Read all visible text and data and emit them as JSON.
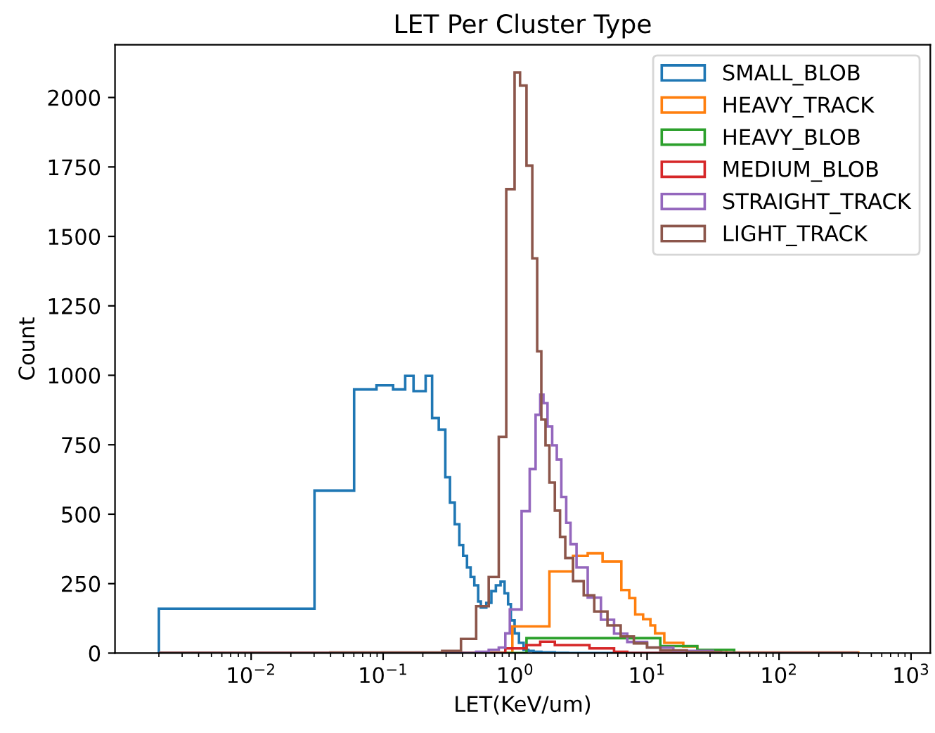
{
  "chart_data": {
    "type": "histogram",
    "title": "LET Per Cluster Type",
    "xlabel": "LET(KeV/um)",
    "ylabel": "Count",
    "log": "x",
    "xlim": [
      0.00093,
      1400
    ],
    "xticks": [
      {
        "value": 0.01,
        "label": "10$^{−2}$"
      },
      {
        "value": 0.1,
        "label": "10$^{−1}$"
      },
      {
        "value": 1,
        "label": "10$^{0}$"
      },
      {
        "value": 10,
        "label": "10$^{1}$"
      },
      {
        "value": 100,
        "label": "10$^{2}$"
      },
      {
        "value": 1000,
        "label": "10$^{3}$"
      }
    ],
    "ylim": [
      0,
      2190
    ],
    "yticks": [
      0,
      250,
      500,
      750,
      1000,
      1250,
      1500,
      1750,
      2000
    ],
    "grid": false,
    "legend": "top right",
    "bins": [
      0.002,
      0.0302,
      0.0398,
      0.0603,
      0.0891,
      0.119,
      0.147,
      0.17,
      0.21,
      0.235,
      0.264,
      0.28,
      0.296,
      0.321,
      0.349,
      0.378,
      0.389,
      0.404,
      0.432,
      0.46,
      0.491,
      0.507,
      0.525,
      0.55,
      0.605,
      0.631,
      0.661,
      0.715,
      0.752,
      0.776,
      0.832,
      0.843,
      0.857,
      0.885,
      0.912,
      0.929,
      0.953,
      0.991,
      1.07,
      1.09,
      1.12,
      1.16,
      1.22,
      1.26,
      1.29,
      1.35,
      1.38,
      1.43,
      1.47,
      1.55,
      1.58,
      1.64,
      1.7,
      1.76,
      1.82,
      1.91,
      2.0,
      2.07,
      2.19,
      2.24,
      2.4,
      2.44,
      2.51,
      2.63,
      2.75,
      2.92,
      3.31,
      3.55,
      3.66,
      3.98,
      4.47,
      4.6,
      5.01,
      5.62,
      6.31,
      6.38,
      7.08,
      7.33,
      7.94,
      8.13,
      9.33,
      10,
      10.6,
      11.5,
      12.6,
      13.5,
      15.8,
      18.8,
      20,
      24.0,
      31.6,
      36.3,
      39.8,
      45.7,
      398
    ],
    "series": [
      {
        "name": "SMALL_BLOB",
        "color": "#1f77b4",
        "values": [
          160,
          585,
          585,
          949,
          964,
          949,
          998,
          943,
          998,
          846,
          804,
          804,
          633,
          542,
          464,
          389,
          389,
          350,
          308,
          274,
          244,
          244,
          186,
          164,
          181,
          181,
          223,
          244,
          244,
          257,
          215,
          215,
          215,
          176,
          176,
          118,
          118,
          71,
          37,
          37,
          37,
          12,
          12,
          8,
          8,
          8,
          5,
          5,
          5,
          5,
          3,
          3,
          3,
          3,
          3,
          3,
          1,
          1,
          1,
          1,
          1,
          1,
          0,
          0,
          0,
          0,
          0,
          0,
          0,
          0,
          0,
          0,
          0,
          0,
          0,
          0,
          0,
          0,
          0,
          0,
          0,
          0,
          0,
          0,
          0,
          0,
          0,
          0,
          0,
          0,
          0,
          0,
          0,
          0
        ]
      },
      {
        "name": "HEAVY_TRACK",
        "color": "#ff7f0e",
        "values": [
          0,
          0,
          0,
          0,
          0,
          0,
          0,
          0,
          0,
          0,
          0,
          0,
          0,
          0,
          0,
          0,
          0,
          0,
          0,
          0,
          0,
          0,
          0,
          0,
          0,
          0,
          0,
          0,
          0,
          0,
          0,
          0,
          0,
          0,
          0,
          0,
          96,
          96,
          96,
          96,
          96,
          96,
          96,
          96,
          96,
          96,
          96,
          96,
          96,
          96,
          96,
          96,
          96,
          96,
          294,
          294,
          294,
          294,
          294,
          294,
          294,
          294,
          294,
          294,
          350,
          350,
          350,
          359,
          359,
          359,
          359,
          330,
          330,
          330,
          330,
          227,
          227,
          198,
          198,
          139,
          122,
          122,
          100,
          71,
          71,
          37,
          37,
          24,
          24,
          12,
          12,
          12,
          2,
          2
        ]
      },
      {
        "name": "HEAVY_BLOB",
        "color": "#2ca02c",
        "values": [
          0,
          0,
          0,
          0,
          0,
          0,
          0,
          0,
          0,
          0,
          0,
          0,
          0,
          0,
          0,
          0,
          0,
          0,
          0,
          0,
          0,
          0,
          0,
          0,
          0,
          0,
          0,
          0,
          0,
          0,
          0,
          0,
          0,
          0,
          0,
          0,
          0,
          0,
          0,
          0,
          0,
          0,
          54,
          54,
          54,
          54,
          54,
          54,
          54,
          54,
          54,
          54,
          54,
          54,
          54,
          54,
          54,
          54,
          54,
          54,
          54,
          54,
          54,
          54,
          54,
          54,
          54,
          54,
          54,
          54,
          54,
          54,
          54,
          54,
          54,
          54,
          54,
          54,
          54,
          54,
          54,
          54,
          54,
          54,
          25,
          25,
          25,
          25,
          25,
          12,
          12,
          12,
          12,
          0
        ]
      },
      {
        "name": "MEDIUM_BLOB",
        "color": "#d62728",
        "values": [
          0,
          0,
          0,
          0,
          0,
          0,
          0,
          0,
          0,
          0,
          0,
          0,
          0,
          0,
          0,
          0,
          0,
          0,
          0,
          0,
          0,
          0,
          0,
          0,
          0,
          0,
          0,
          0,
          0,
          0,
          0,
          17,
          17,
          17,
          17,
          17,
          17,
          17,
          17,
          17,
          17,
          17,
          29,
          29,
          29,
          29,
          29,
          29,
          29,
          41,
          41,
          41,
          41,
          41,
          41,
          41,
          29,
          29,
          29,
          29,
          29,
          29,
          29,
          29,
          29,
          29,
          29,
          29,
          17,
          17,
          17,
          17,
          17,
          5,
          5,
          5,
          0,
          0,
          0,
          0,
          0,
          0,
          0,
          0,
          0,
          0,
          0,
          0,
          0,
          0,
          0,
          0,
          0,
          0
        ]
      },
      {
        "name": "STRAIGHT_TRACK",
        "color": "#9467bd",
        "values": [
          0,
          0,
          0,
          0,
          0,
          0,
          0,
          0,
          0,
          0,
          0,
          0,
          0,
          0,
          0,
          0,
          0,
          0,
          0,
          0,
          0,
          5,
          5,
          5,
          5,
          12,
          12,
          12,
          20,
          20,
          20,
          71,
          71,
          71,
          157,
          157,
          157,
          157,
          157,
          157,
          511,
          511,
          511,
          511,
          663,
          663,
          663,
          858,
          858,
          930,
          930,
          900,
          900,
          816,
          816,
          748,
          748,
          697,
          697,
          562,
          562,
          469,
          469,
          392,
          392,
          308,
          308,
          200,
          200,
          200,
          120,
          120,
          120,
          70,
          70,
          70,
          40,
          40,
          40,
          40,
          40,
          20,
          20,
          20,
          20,
          20,
          8,
          8,
          8,
          8,
          0,
          0,
          0,
          0
        ]
      },
      {
        "name": "LIGHT_TRACK",
        "color": "#8c564b",
        "values": [
          0,
          0,
          2,
          2,
          2,
          2,
          2,
          2,
          2,
          2,
          2,
          8,
          8,
          8,
          8,
          8,
          51,
          51,
          51,
          51,
          51,
          169,
          169,
          169,
          169,
          274,
          274,
          274,
          778,
          778,
          778,
          778,
          1670,
          1670,
          1670,
          1670,
          1670,
          2090,
          2090,
          2043,
          2043,
          2043,
          1755,
          1755,
          1755,
          1421,
          1421,
          1421,
          1086,
          1086,
          841,
          841,
          748,
          748,
          614,
          614,
          513,
          513,
          418,
          418,
          342,
          342,
          342,
          342,
          259,
          259,
          208,
          208,
          208,
          150,
          150,
          150,
          100,
          100,
          60,
          60,
          60,
          60,
          35,
          35,
          35,
          20,
          20,
          20,
          10,
          10,
          10,
          10,
          4,
          4,
          4,
          0,
          0,
          0
        ]
      }
    ]
  }
}
